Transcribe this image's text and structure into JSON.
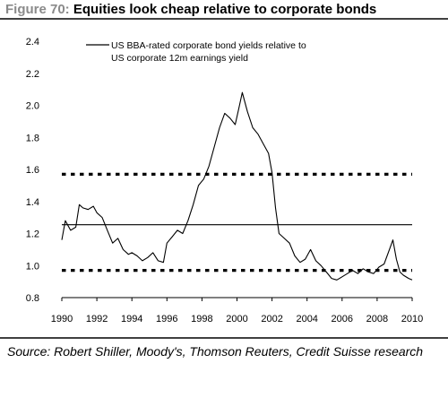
{
  "header": {
    "figure_label": "Figure 70:",
    "title": "Equities look cheap relative to corporate bonds"
  },
  "source_note": "Source: Robert Shiller, Moody's, Thomson Reuters, Credit Suisse research",
  "colors": {
    "figure_label": "#8a8a8a",
    "line": "#000000",
    "dotted": "#000000"
  },
  "chart_data": {
    "type": "line",
    "title": "",
    "xlabel": "",
    "ylabel": "",
    "xlim": [
      1990,
      2010
    ],
    "ylim": [
      0.8,
      2.4
    ],
    "grid": false,
    "legend_position": "top-left",
    "x_ticks": [
      "1990",
      "1992",
      "1994",
      "1996",
      "1998",
      "2000",
      "2002",
      "2004",
      "2006",
      "2008",
      "2010"
    ],
    "y_ticks": [
      "2.4",
      "2.2",
      "2.0",
      "1.8",
      "1.6",
      "1.4",
      "1.2",
      "1.0",
      "0.8"
    ],
    "series": [
      {
        "name": "US BBA-rated corporate bond yields relative to US corporate 12m earnings yield",
        "x": [
          1990.0,
          1990.2,
          1990.5,
          1990.8,
          1991.0,
          1991.2,
          1991.5,
          1991.8,
          1992.0,
          1992.3,
          1992.6,
          1992.9,
          1993.2,
          1993.5,
          1993.8,
          1994.0,
          1994.3,
          1994.6,
          1994.9,
          1995.2,
          1995.5,
          1995.8,
          1996.0,
          1996.3,
          1996.6,
          1996.9,
          1997.2,
          1997.5,
          1997.8,
          1998.1,
          1998.4,
          1998.7,
          1999.0,
          1999.3,
          1999.6,
          1999.9,
          2000.1,
          2000.3,
          2000.6,
          2000.9,
          2001.2,
          2001.5,
          2001.8,
          2002.0,
          2002.2,
          2002.4,
          2002.7,
          2003.0,
          2003.3,
          2003.6,
          2003.9,
          2004.2,
          2004.5,
          2004.8,
          2005.1,
          2005.4,
          2005.7,
          2006.0,
          2006.3,
          2006.6,
          2006.9,
          2007.2,
          2007.5,
          2007.8,
          2008.1,
          2008.4,
          2008.7,
          2008.9,
          2009.1,
          2009.3,
          2009.5,
          2009.8,
          2010.0
        ],
        "values": [
          1.16,
          1.28,
          1.22,
          1.24,
          1.38,
          1.36,
          1.35,
          1.37,
          1.33,
          1.3,
          1.22,
          1.14,
          1.17,
          1.1,
          1.07,
          1.08,
          1.06,
          1.03,
          1.05,
          1.08,
          1.03,
          1.02,
          1.14,
          1.18,
          1.22,
          1.2,
          1.28,
          1.38,
          1.5,
          1.54,
          1.62,
          1.74,
          1.86,
          1.95,
          1.92,
          1.88,
          1.98,
          2.08,
          1.96,
          1.86,
          1.82,
          1.76,
          1.7,
          1.58,
          1.36,
          1.2,
          1.17,
          1.14,
          1.06,
          1.02,
          1.04,
          1.1,
          1.03,
          1.0,
          0.96,
          0.92,
          0.91,
          0.93,
          0.95,
          0.97,
          0.95,
          0.98,
          0.96,
          0.95,
          0.99,
          1.01,
          1.1,
          1.16,
          1.04,
          0.96,
          0.94,
          0.92,
          0.91
        ]
      }
    ],
    "reference_lines": [
      {
        "y": 1.255,
        "style": "solid"
      },
      {
        "y": 1.57,
        "style": "dotted"
      },
      {
        "y": 0.97,
        "style": "dotted"
      }
    ]
  }
}
